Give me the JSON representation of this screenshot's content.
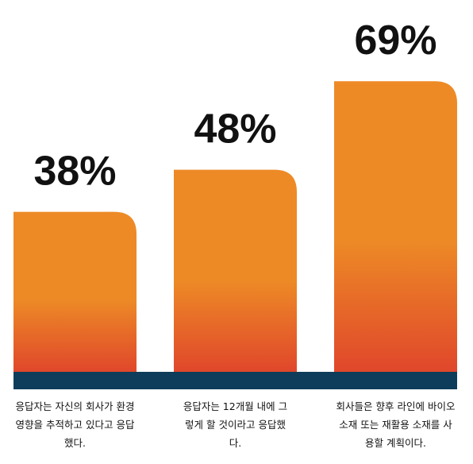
{
  "chart_data": {
    "type": "bar",
    "categories": [
      "응답자는 자신의 회사가 환경 영향을 추적하고 있다고 응답했다.",
      "응답자는 12개월 내에 그렇게 할 것이라고 응답했다.",
      "회사들은 향후 라인에 바이오 소재 또는 재활용 소재를 사용할 계획이다."
    ],
    "values": [
      38,
      48,
      69
    ],
    "value_labels": [
      "38%",
      "48%",
      "69%"
    ],
    "colors": [
      "#ed8a26",
      "#e0472b"
    ],
    "base_color": "#0d3d5a"
  }
}
